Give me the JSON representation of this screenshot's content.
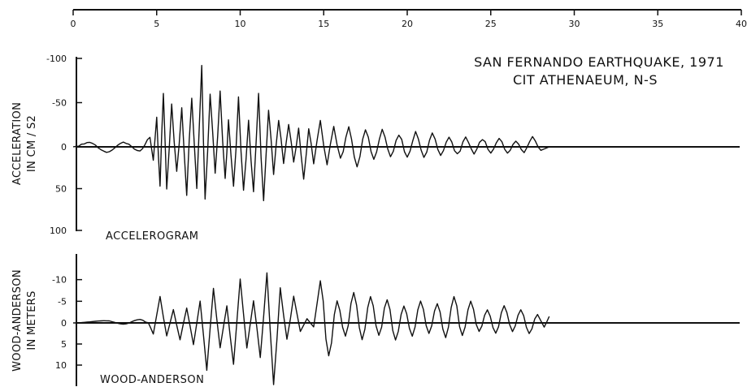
{
  "title": {
    "line1": "SAN FERNANDO EARTHQUAKE, 1971",
    "line2": "CIT ATHENAEUM, N-S"
  },
  "chart_data": [
    {
      "type": "line",
      "panel": "accelerogram",
      "label": "ACCELEROGRAM",
      "ylabel_line1": "ACCELERATION",
      "ylabel_line2": "IN CM / S2",
      "time_axis_ticks": [
        "0",
        "5",
        "10",
        "15",
        "20",
        "25",
        "30",
        "35",
        "40"
      ],
      "xlim": [
        0,
        40
      ],
      "ylim": [
        100,
        -100
      ],
      "y_inverted": true,
      "ytick_labels": [
        "-100",
        "-50",
        "0",
        "50",
        "100"
      ],
      "ytick_values": [
        -100,
        -50,
        0,
        50,
        100
      ],
      "peaks": [
        {
          "t": 0.0,
          "v": 0
        },
        {
          "t": 1.0,
          "v": -5
        },
        {
          "t": 2.0,
          "v": 6
        },
        {
          "t": 3.0,
          "v": -5
        },
        {
          "t": 4.0,
          "v": 5
        },
        {
          "t": 4.6,
          "v": -10
        },
        {
          "t": 4.8,
          "v": 18
        },
        {
          "t": 5.0,
          "v": -32
        },
        {
          "t": 5.2,
          "v": 48
        },
        {
          "t": 5.4,
          "v": -65
        },
        {
          "t": 5.6,
          "v": 55
        },
        {
          "t": 5.9,
          "v": -45
        },
        {
          "t": 6.2,
          "v": 30
        },
        {
          "t": 6.5,
          "v": -40
        },
        {
          "t": 6.8,
          "v": 52
        },
        {
          "t": 7.1,
          "v": -55
        },
        {
          "t": 7.4,
          "v": 45
        },
        {
          "t": 7.7,
          "v": -82
        },
        {
          "t": 7.9,
          "v": 65
        },
        {
          "t": 8.2,
          "v": -55
        },
        {
          "t": 8.5,
          "v": 28
        },
        {
          "t": 8.8,
          "v": -60
        },
        {
          "t": 9.1,
          "v": 35
        },
        {
          "t": 9.3,
          "v": -30
        },
        {
          "t": 9.6,
          "v": 45
        },
        {
          "t": 9.9,
          "v": -50
        },
        {
          "t": 10.2,
          "v": 52
        },
        {
          "t": 10.5,
          "v": -35
        },
        {
          "t": 10.8,
          "v": 60
        },
        {
          "t": 11.1,
          "v": -55
        },
        {
          "t": 11.4,
          "v": 72
        },
        {
          "t": 11.7,
          "v": -40
        },
        {
          "t": 12.0,
          "v": 30
        },
        {
          "t": 12.3,
          "v": -32
        },
        {
          "t": 12.6,
          "v": 22
        },
        {
          "t": 12.9,
          "v": -28
        },
        {
          "t": 13.2,
          "v": 20
        },
        {
          "t": 13.5,
          "v": -25
        },
        {
          "t": 13.8,
          "v": 38
        },
        {
          "t": 14.1,
          "v": -22
        },
        {
          "t": 14.4,
          "v": 18
        },
        {
          "t": 14.8,
          "v": -28
        },
        {
          "t": 15.2,
          "v": 20
        },
        {
          "t": 15.6,
          "v": -22
        },
        {
          "t": 16.0,
          "v": 15
        },
        {
          "t": 16.5,
          "v": -20
        },
        {
          "t": 17.0,
          "v": 22
        },
        {
          "t": 17.5,
          "v": -18
        },
        {
          "t": 18.0,
          "v": 15
        },
        {
          "t": 18.5,
          "v": -18
        },
        {
          "t": 19.0,
          "v": 12
        },
        {
          "t": 19.5,
          "v": -15
        },
        {
          "t": 20.0,
          "v": 14
        },
        {
          "t": 20.5,
          "v": -16
        },
        {
          "t": 21.0,
          "v": 12
        },
        {
          "t": 21.5,
          "v": -14
        },
        {
          "t": 22.0,
          "v": 10
        },
        {
          "t": 22.5,
          "v": -12
        },
        {
          "t": 23.0,
          "v": 9
        },
        {
          "t": 23.5,
          "v": -10
        },
        {
          "t": 24.0,
          "v": 8
        },
        {
          "t": 24.5,
          "v": -9
        },
        {
          "t": 25.0,
          "v": 7
        },
        {
          "t": 25.5,
          "v": -10
        },
        {
          "t": 26.0,
          "v": 8
        },
        {
          "t": 26.5,
          "v": -7
        },
        {
          "t": 27.0,
          "v": 6
        },
        {
          "t": 27.5,
          "v": -12
        },
        {
          "t": 28.0,
          "v": 4
        },
        {
          "t": 28.5,
          "v": 0
        }
      ]
    },
    {
      "type": "line",
      "panel": "wood-anderson",
      "label": "WOOD-ANDERSON",
      "ylabel_line1": "WOOD-ANDERSON",
      "ylabel_line2": "IN METERS",
      "xlim": [
        0,
        40
      ],
      "ylim": [
        15,
        -15
      ],
      "y_inverted": true,
      "ytick_labels": [
        "-10",
        "-5",
        "0",
        "5",
        "10"
      ],
      "ytick_values": [
        -10,
        -5,
        0,
        5,
        10
      ],
      "peaks": [
        {
          "t": 0.0,
          "v": 0
        },
        {
          "t": 2.0,
          "v": -0.5
        },
        {
          "t": 3.0,
          "v": 0.3
        },
        {
          "t": 4.0,
          "v": -0.8
        },
        {
          "t": 4.5,
          "v": 0
        },
        {
          "t": 4.8,
          "v": 2.5
        },
        {
          "t": 5.2,
          "v": -6
        },
        {
          "t": 5.6,
          "v": 3
        },
        {
          "t": 6.0,
          "v": -3
        },
        {
          "t": 6.4,
          "v": 4
        },
        {
          "t": 6.8,
          "v": -3.5
        },
        {
          "t": 7.2,
          "v": 5
        },
        {
          "t": 7.6,
          "v": -5
        },
        {
          "t": 8.0,
          "v": 11
        },
        {
          "t": 8.4,
          "v": -8
        },
        {
          "t": 8.8,
          "v": 6
        },
        {
          "t": 9.2,
          "v": -4
        },
        {
          "t": 9.6,
          "v": 10
        },
        {
          "t": 10.0,
          "v": -10
        },
        {
          "t": 10.4,
          "v": 6
        },
        {
          "t": 10.8,
          "v": -5
        },
        {
          "t": 11.2,
          "v": 8
        },
        {
          "t": 11.6,
          "v": -11.5
        },
        {
          "t": 12.0,
          "v": 15
        },
        {
          "t": 12.4,
          "v": -8
        },
        {
          "t": 12.8,
          "v": 4
        },
        {
          "t": 13.2,
          "v": -6
        },
        {
          "t": 13.6,
          "v": 2
        },
        {
          "t": 14.0,
          "v": -1
        },
        {
          "t": 14.4,
          "v": 1
        },
        {
          "t": 14.8,
          "v": -9.5
        },
        {
          "t": 15.3,
          "v": 8
        },
        {
          "t": 15.8,
          "v": -5
        },
        {
          "t": 16.3,
          "v": 3
        },
        {
          "t": 16.8,
          "v": -7
        },
        {
          "t": 17.3,
          "v": 4
        },
        {
          "t": 17.8,
          "v": -6
        },
        {
          "t": 18.3,
          "v": 3
        },
        {
          "t": 18.8,
          "v": -5.5
        },
        {
          "t": 19.3,
          "v": 4
        },
        {
          "t": 19.8,
          "v": -4
        },
        {
          "t": 20.3,
          "v": 3
        },
        {
          "t": 20.8,
          "v": -5
        },
        {
          "t": 21.3,
          "v": 2.5
        },
        {
          "t": 21.8,
          "v": -4.5
        },
        {
          "t": 22.3,
          "v": 3.5
        },
        {
          "t": 22.8,
          "v": -6
        },
        {
          "t": 23.3,
          "v": 3
        },
        {
          "t": 23.8,
          "v": -5
        },
        {
          "t": 24.3,
          "v": 2
        },
        {
          "t": 24.8,
          "v": -3
        },
        {
          "t": 25.3,
          "v": 2.5
        },
        {
          "t": 25.8,
          "v": -4
        },
        {
          "t": 26.3,
          "v": 2
        },
        {
          "t": 26.8,
          "v": -3
        },
        {
          "t": 27.3,
          "v": 2.5
        },
        {
          "t": 27.8,
          "v": -2
        },
        {
          "t": 28.2,
          "v": 1
        },
        {
          "t": 28.5,
          "v": -1.5
        }
      ]
    }
  ]
}
